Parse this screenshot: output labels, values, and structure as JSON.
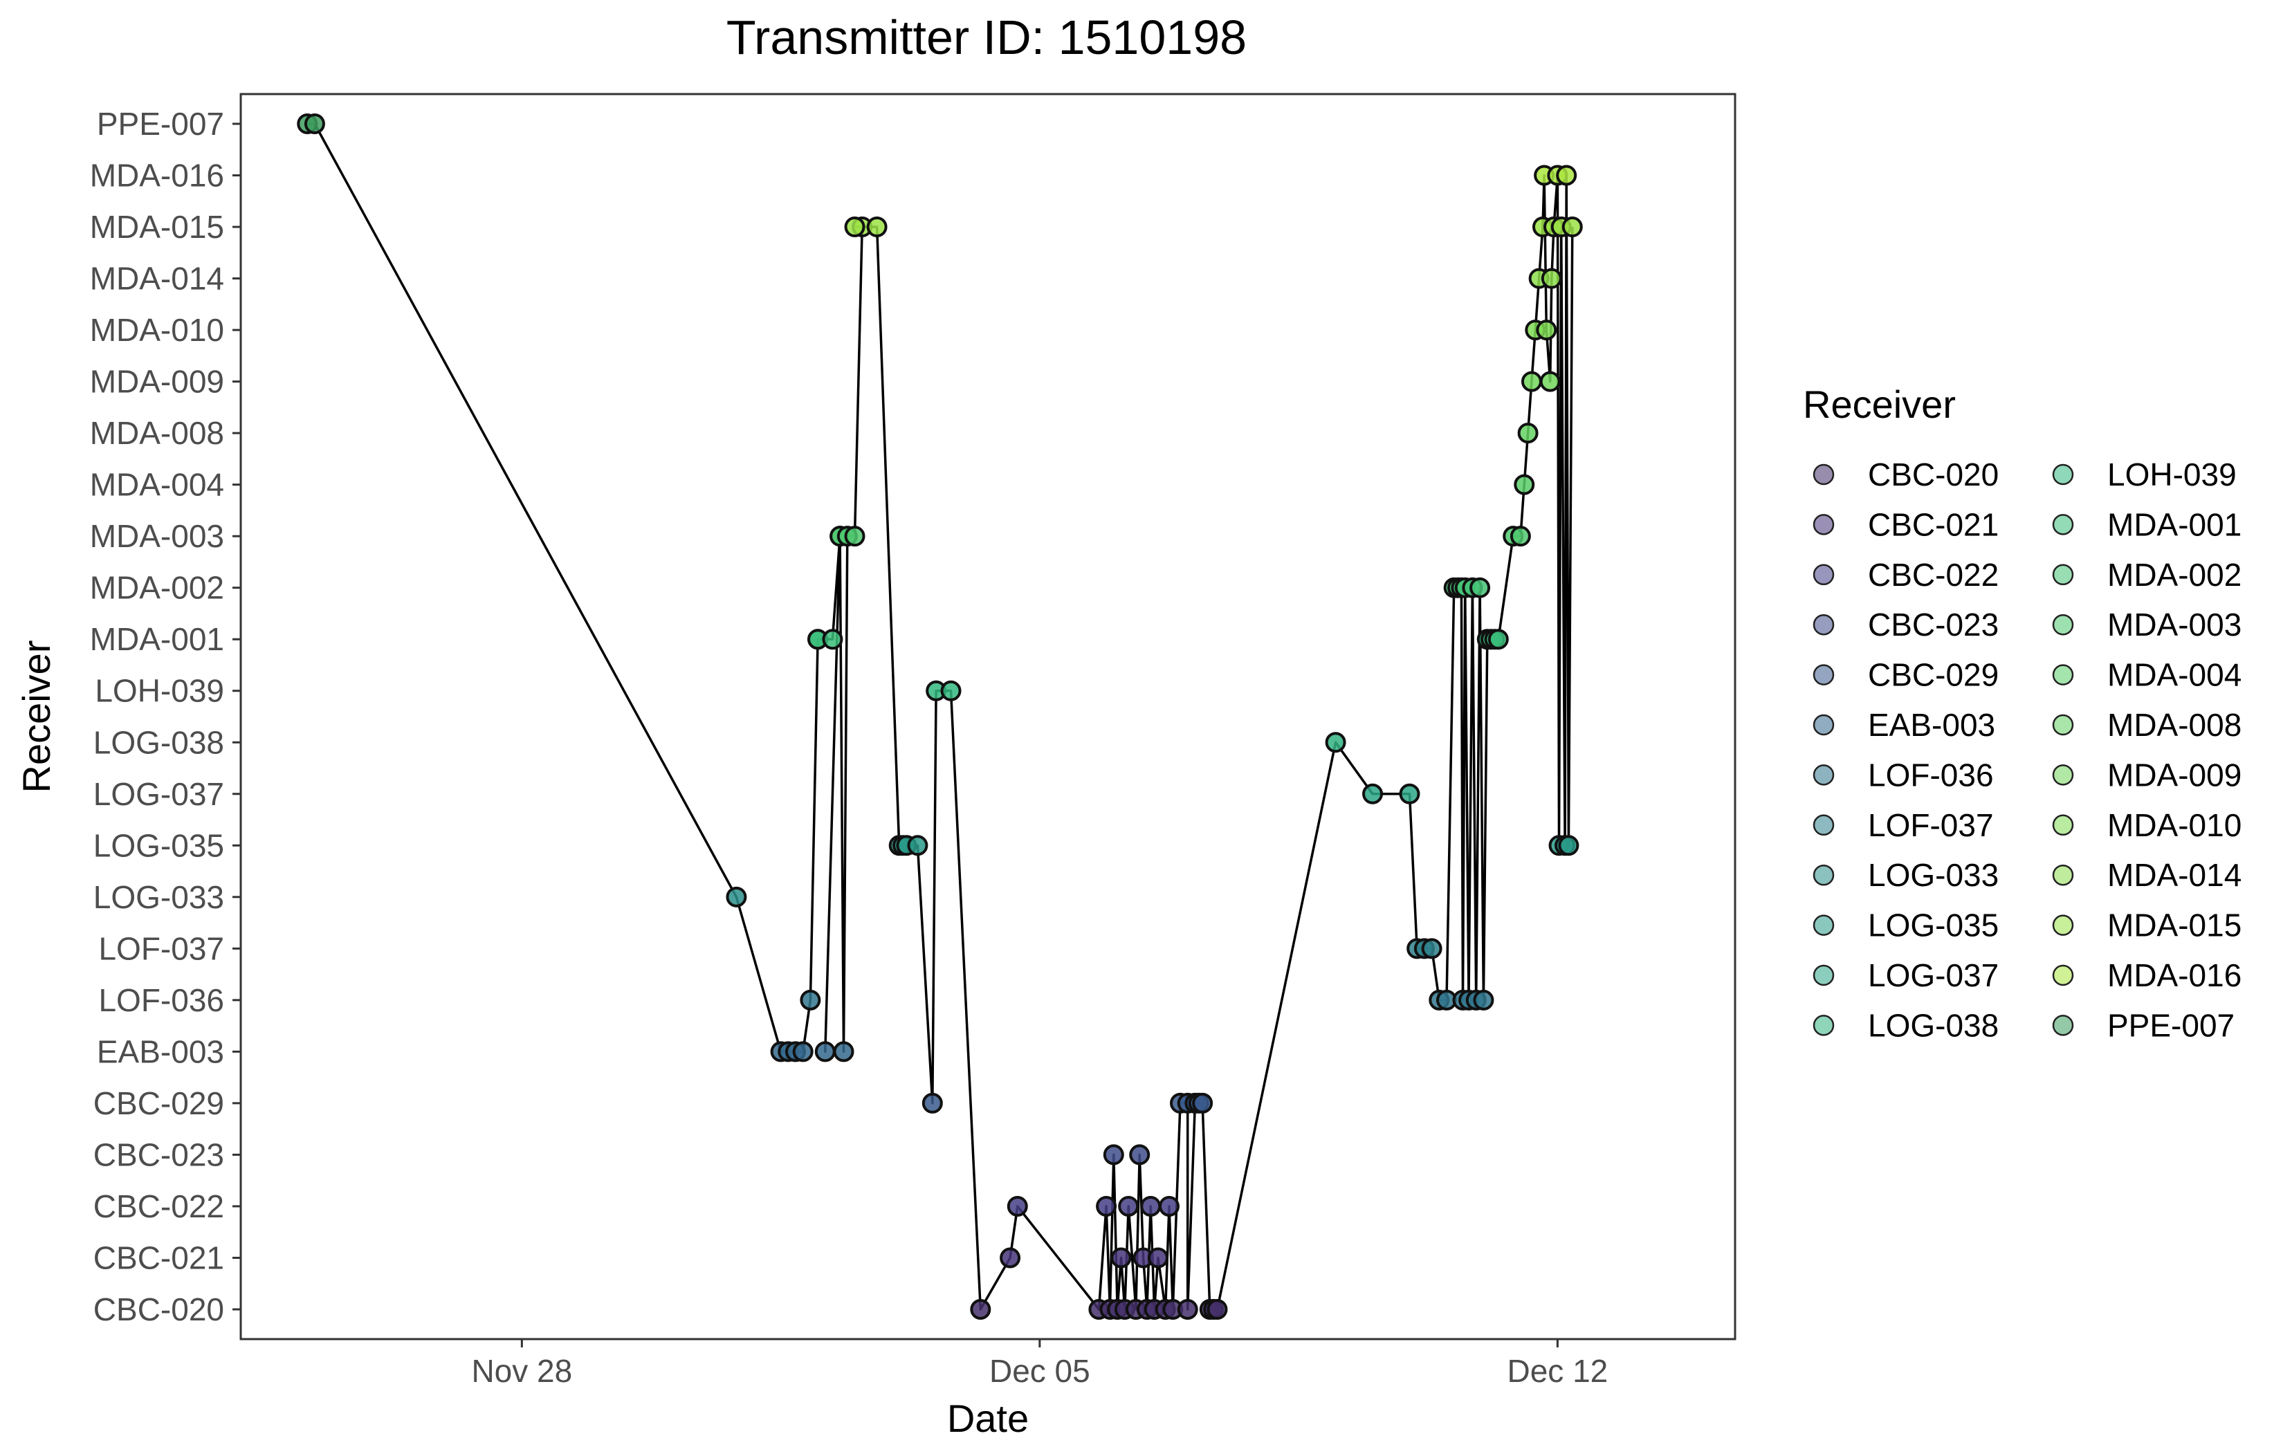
{
  "chart_data": {
    "type": "line",
    "title": "Transmitter ID: 1510198",
    "xlabel": "Date",
    "ylabel": "Receiver",
    "x_ticks": [
      "Nov 28",
      "Dec 05",
      "Dec 12"
    ],
    "x_tick_values": [
      0,
      7,
      14
    ],
    "xlim": [
      -3.8,
      16.4
    ],
    "categories": [
      "CBC-020",
      "CBC-021",
      "CBC-022",
      "CBC-023",
      "CBC-029",
      "EAB-003",
      "LOF-036",
      "LOF-037",
      "LOG-033",
      "LOG-035",
      "LOG-037",
      "LOG-038",
      "LOH-039",
      "MDA-001",
      "MDA-002",
      "MDA-003",
      "MDA-004",
      "MDA-008",
      "MDA-009",
      "MDA-010",
      "MDA-014",
      "MDA-015",
      "MDA-016",
      "PPE-007"
    ],
    "legend_title": "Receiver",
    "legend_position": "right",
    "grid": false,
    "colors": {
      "CBC-020": "#45306b",
      "CBC-021": "#47357a",
      "CBC-022": "#453f86",
      "CBC-023": "#3f4d8b",
      "CBC-029": "#3a5b8d",
      "EAB-003": "#35688d",
      "LOF-036": "#31758d",
      "LOF-037": "#2e818c",
      "LOG-033": "#2b8e8b",
      "LOG-035": "#299a88",
      "LOG-037": "#2ba686",
      "LOG-038": "#31b282",
      "LOH-039": "#33b87f",
      "MDA-001": "#3bbd7a",
      "MDA-002": "#45c375",
      "MDA-003": "#4fc86f",
      "MDA-004": "#5acd69",
      "MDA-008": "#65d262",
      "MDA-009": "#72d65b",
      "MDA-010": "#7fda53",
      "MDA-014": "#8dde4c",
      "MDA-015": "#9be245",
      "MDA-016": "#aae53f",
      "PPE-007": "#3d9c5e",
      "line": "#000000",
      "panel_border": "#333333"
    },
    "series": [
      {
        "x": [
          -2.9,
          -2.8,
          2.9,
          3.5,
          3.6,
          3.7,
          3.8,
          3.9,
          4.0,
          4.0,
          4.2,
          4.3,
          4.1,
          4.3,
          4.35,
          4.4,
          4.5,
          4.6,
          4.5,
          4.8,
          5.1,
          5.15,
          5.2,
          5.35,
          5.55,
          5.6,
          5.8,
          6.2,
          6.6,
          6.7,
          7.8,
          7.9,
          7.95,
          8.0,
          8.05,
          8.1,
          8.15,
          8.2,
          8.3,
          8.35,
          8.4,
          8.45,
          8.5,
          8.55,
          8.6,
          8.7,
          8.75,
          8.8,
          8.9,
          9.0,
          9.0,
          9.1,
          9.15,
          9.2,
          9.3,
          9.35,
          9.4,
          11.0,
          11.5,
          12.0,
          12.1,
          12.2,
          12.3,
          12.4,
          12.5,
          12.6,
          12.65,
          12.7,
          12.72,
          12.75,
          12.8,
          12.85,
          12.9,
          12.95,
          13.0,
          13.05,
          13.1,
          13.15,
          13.2,
          13.4,
          13.5,
          13.55,
          13.6,
          13.65,
          13.7,
          13.75,
          13.8,
          13.82,
          13.85,
          13.9,
          13.92,
          13.95,
          14.0,
          14.02,
          14.05,
          14.1,
          14.12,
          14.15,
          14.2
        ],
        "y": [
          "PPE-007",
          "PPE-007",
          "LOG-033",
          "EAB-003",
          "EAB-003",
          "EAB-003",
          "EAB-003",
          "LOF-036",
          "MDA-001",
          "MDA-001",
          "MDA-001",
          "MDA-003",
          "EAB-003",
          "MDA-003",
          "EAB-003",
          "MDA-003",
          "MDA-003",
          "MDA-015",
          "MDA-015",
          "MDA-015",
          "LOG-035",
          "LOG-035",
          "LOG-035",
          "LOG-035",
          "CBC-029",
          "LOH-039",
          "LOH-039",
          "CBC-020",
          "CBC-021",
          "CBC-022",
          "CBC-020",
          "CBC-022",
          "CBC-020",
          "CBC-023",
          "CBC-020",
          "CBC-021",
          "CBC-020",
          "CBC-022",
          "CBC-020",
          "CBC-023",
          "CBC-021",
          "CBC-020",
          "CBC-022",
          "CBC-020",
          "CBC-021",
          "CBC-020",
          "CBC-022",
          "CBC-020",
          "CBC-029",
          "CBC-029",
          "CBC-020",
          "CBC-029",
          "CBC-029",
          "CBC-029",
          "CBC-020",
          "CBC-020",
          "CBC-020",
          "LOG-038",
          "LOG-037",
          "LOG-037",
          "LOF-037",
          "LOF-037",
          "LOF-037",
          "LOF-036",
          "LOF-036",
          "MDA-002",
          "MDA-002",
          "MDA-002",
          "LOF-036",
          "MDA-002",
          "LOF-036",
          "MDA-002",
          "LOF-036",
          "MDA-002",
          "LOF-036",
          "MDA-001",
          "MDA-001",
          "MDA-001",
          "MDA-001",
          "MDA-003",
          "MDA-003",
          "MDA-004",
          "MDA-008",
          "MDA-009",
          "MDA-010",
          "MDA-014",
          "MDA-015",
          "MDA-016",
          "MDA-010",
          "MDA-009",
          "MDA-014",
          "MDA-015",
          "MDA-016",
          "LOG-035",
          "MDA-015",
          "LOG-035",
          "MDA-016",
          "LOG-035",
          "MDA-015"
        ]
      }
    ]
  }
}
